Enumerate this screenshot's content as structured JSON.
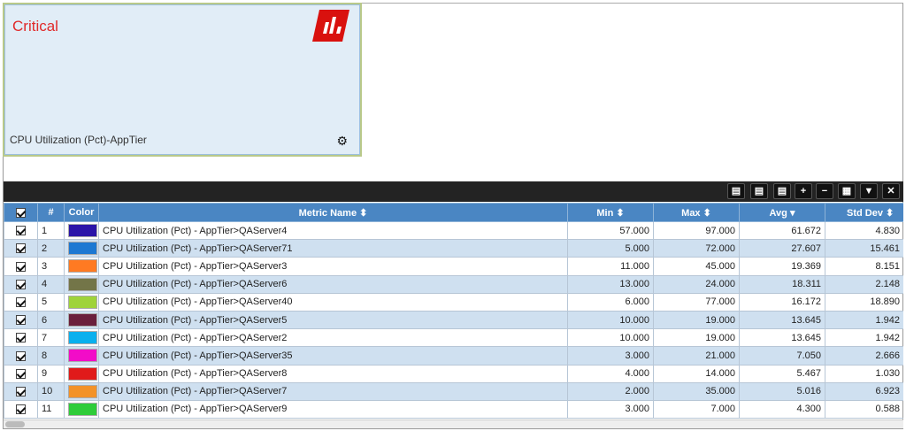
{
  "tile": {
    "status": "Critical",
    "label": "CPU Utilization (Pct)-AppTier",
    "status_color": "#e02a2a",
    "logo_color": "#d9110e"
  },
  "toolbar": {
    "buttons": [
      {
        "name": "export-pdf",
        "icon": "pdf-icon"
      },
      {
        "name": "export-excel",
        "icon": "excel-icon"
      },
      {
        "name": "export-word",
        "icon": "word-icon"
      },
      {
        "name": "expand",
        "icon": "plus-icon"
      },
      {
        "name": "collapse",
        "icon": "minus-icon"
      },
      {
        "name": "columns",
        "icon": "table-icon"
      },
      {
        "name": "filter",
        "icon": "filter-icon"
      },
      {
        "name": "close",
        "icon": "close-icon"
      }
    ]
  },
  "table": {
    "headers": {
      "num": "#",
      "color": "Color",
      "metric": "Metric Name",
      "min": "Min",
      "max": "Max",
      "avg": "Avg",
      "std": "Std Dev"
    },
    "rows": [
      {
        "n": "1",
        "color": "#2a14a8",
        "metric": "CPU Utilization (Pct) - AppTier>QAServer4",
        "min": "57.000",
        "max": "97.000",
        "avg": "61.672",
        "std": "4.830"
      },
      {
        "n": "2",
        "color": "#1d78d2",
        "metric": "CPU Utilization (Pct) - AppTier>QAServer71",
        "min": "5.000",
        "max": "72.000",
        "avg": "27.607",
        "std": "15.461"
      },
      {
        "n": "3",
        "color": "#ff7a22",
        "metric": "CPU Utilization (Pct) - AppTier>QAServer3",
        "min": "11.000",
        "max": "45.000",
        "avg": "19.369",
        "std": "8.151"
      },
      {
        "n": "4",
        "color": "#737548",
        "metric": "CPU Utilization (Pct) - AppTier>QAServer6",
        "min": "13.000",
        "max": "24.000",
        "avg": "18.311",
        "std": "2.148"
      },
      {
        "n": "5",
        "color": "#9fd33a",
        "metric": "CPU Utilization (Pct) - AppTier>QAServer40",
        "min": "6.000",
        "max": "77.000",
        "avg": "16.172",
        "std": "18.890"
      },
      {
        "n": "6",
        "color": "#6a1f3c",
        "metric": "CPU Utilization (Pct) - AppTier>QAServer5",
        "min": "10.000",
        "max": "19.000",
        "avg": "13.645",
        "std": "1.942"
      },
      {
        "n": "7",
        "color": "#0ab0ee",
        "metric": "CPU Utilization (Pct) - AppTier>QAServer2",
        "min": "10.000",
        "max": "19.000",
        "avg": "13.645",
        "std": "1.942"
      },
      {
        "n": "8",
        "color": "#f20cc8",
        "metric": "CPU Utilization (Pct) - AppTier>QAServer35",
        "min": "3.000",
        "max": "21.000",
        "avg": "7.050",
        "std": "2.666"
      },
      {
        "n": "9",
        "color": "#e01a1a",
        "metric": "CPU Utilization (Pct) - AppTier>QAServer8",
        "min": "4.000",
        "max": "14.000",
        "avg": "5.467",
        "std": "1.030"
      },
      {
        "n": "10",
        "color": "#f39228",
        "metric": "CPU Utilization (Pct) - AppTier>QAServer7",
        "min": "2.000",
        "max": "35.000",
        "avg": "5.016",
        "std": "6.923"
      },
      {
        "n": "11",
        "color": "#2ecc3a",
        "metric": "CPU Utilization (Pct) - AppTier>QAServer9",
        "min": "3.000",
        "max": "7.000",
        "avg": "4.300",
        "std": "0.588"
      }
    ]
  }
}
